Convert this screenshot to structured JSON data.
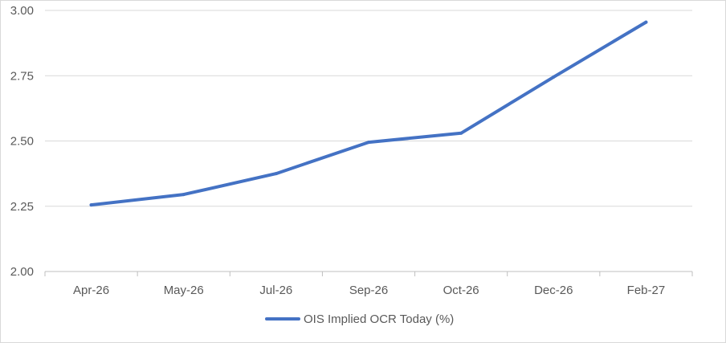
{
  "chart_data": {
    "type": "line",
    "title": "",
    "xlabel": "",
    "ylabel": "",
    "categories": [
      "Apr-26",
      "May-26",
      "Jul-26",
      "Sep-26",
      "Oct-26",
      "Dec-26",
      "Feb-27"
    ],
    "series": [
      {
        "name": "OIS Implied OCR Today (%)",
        "values": [
          2.255,
          2.295,
          2.375,
          2.495,
          2.53,
          2.745,
          2.955
        ],
        "color": "#4472C4"
      }
    ],
    "ylim": [
      2.0,
      3.0
    ],
    "y_ticks": [
      "2.00",
      "2.25",
      "2.50",
      "2.75",
      "3.00"
    ],
    "grid": true,
    "legend_position": "bottom"
  }
}
